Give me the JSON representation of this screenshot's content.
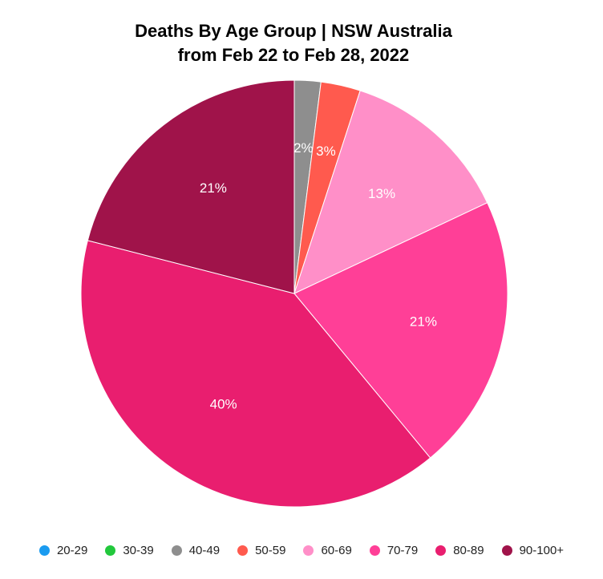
{
  "chart_data": {
    "type": "pie",
    "title": "Deaths By Age Group | NSW Australia",
    "subtitle": "from Feb 22 to Feb 28, 2022",
    "categories": [
      "20-29",
      "30-39",
      "40-49",
      "50-59",
      "60-69",
      "70-79",
      "80-89",
      "90-100+"
    ],
    "values": [
      0,
      0,
      2,
      3,
      13,
      21,
      40,
      21
    ],
    "data_labels": [
      "",
      "",
      "2%",
      "3%",
      "13%",
      "21%",
      "40%",
      "21%"
    ],
    "colors": [
      "#1a9bf0",
      "#22c83c",
      "#8e8e8e",
      "#ff5a4e",
      "#ff8fc8",
      "#ff3f97",
      "#e91e6f",
      "#a0134a"
    ],
    "legend_position": "bottom"
  }
}
